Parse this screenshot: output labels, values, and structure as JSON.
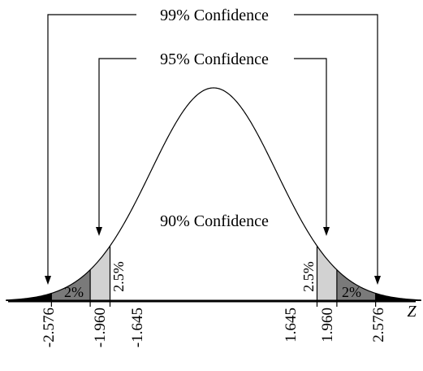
{
  "labels": {
    "ci99": "99% Confidence",
    "ci95": "95% Confidence",
    "ci90": "90% Confidence",
    "axis": "Z"
  },
  "regions": {
    "left_outer": "2%",
    "left_mid": "2.5%",
    "right_mid": "2.5%",
    "right_outer": "2%"
  },
  "ticks": [
    "-2.576",
    "-1.960",
    "-1.645",
    "1.645",
    "1.960",
    "2.576"
  ],
  "z_values": [
    -2.576,
    -1.96,
    -1.645,
    1.645,
    1.96,
    2.576
  ],
  "shading": {
    "beyond_2576": "#000000",
    "between_196_2576": "#7a7a7a",
    "between_1645_196": "#d2d2d2",
    "center": "#ffffff"
  }
}
